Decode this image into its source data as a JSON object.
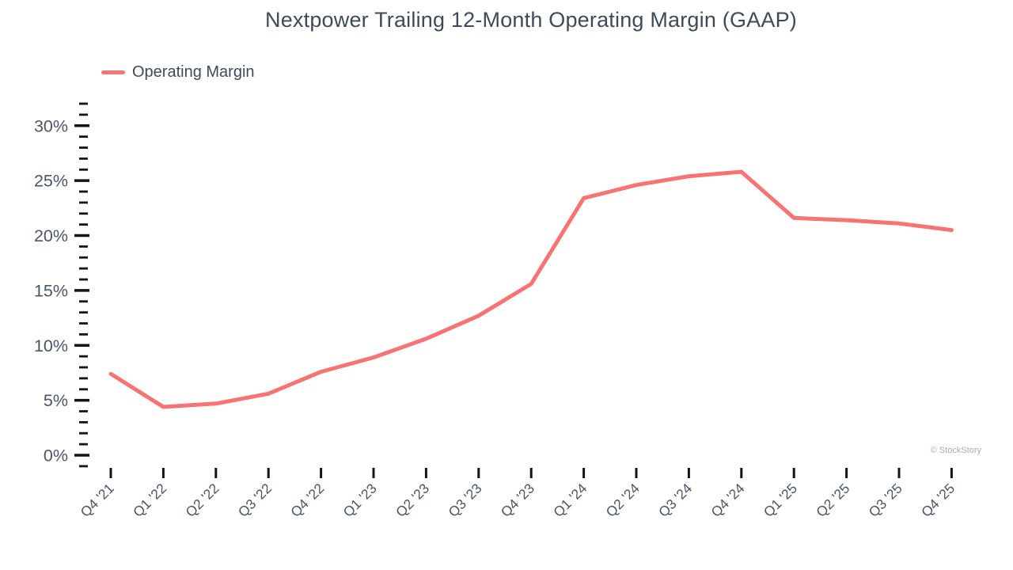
{
  "chart_data": {
    "type": "line",
    "title": "Nextpower Trailing 12-Month Operating Margin (GAAP)",
    "categories": [
      "Q4 '21",
      "Q1 '22",
      "Q2 '22",
      "Q3 '22",
      "Q4 '22",
      "Q1 '23",
      "Q2 '23",
      "Q3 '23",
      "Q4 '23",
      "Q1 '24",
      "Q2 '24",
      "Q3 '24",
      "Q4 '24",
      "Q1 '25",
      "Q2 '25",
      "Q3 '25",
      "Q4 '25"
    ],
    "series": [
      {
        "name": "Operating Margin",
        "color": "#F87373",
        "values": [
          7.4,
          4.4,
          4.7,
          5.6,
          7.6,
          8.9,
          10.6,
          12.7,
          15.6,
          23.4,
          24.6,
          25.4,
          25.8,
          21.6,
          21.4,
          21.1,
          20.5
        ]
      }
    ],
    "xlabel": "",
    "ylabel": "",
    "ylim": [
      -1,
      32
    ],
    "ytick_major": [
      0,
      5,
      10,
      15,
      20,
      25,
      30
    ],
    "ytick_minor_step": 1,
    "ytick_label_format": "{v}%",
    "grid": false,
    "legend_position": "top-left",
    "title_color": "#3e4a59",
    "axis_text_color": "#4b5563",
    "tick_color": "#141414"
  },
  "watermark": "© StockStory"
}
